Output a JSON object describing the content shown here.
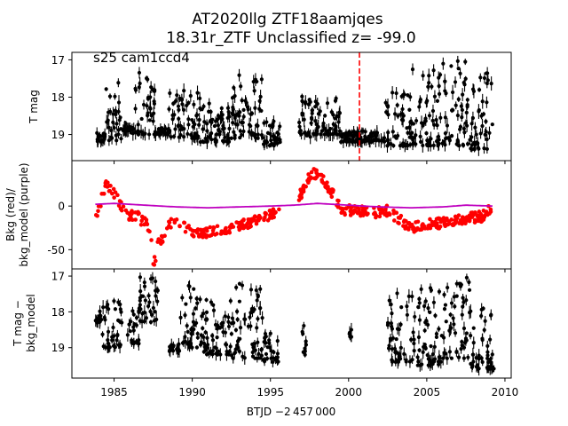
{
  "title_line1": "AT2020llg  ZTF18aamjqes",
  "title_line2": "18.31r_ZTF Unclassified z= -99.0",
  "annotation": "s25 cam1ccd4",
  "xlabel": "BTJD −2 457 000",
  "colors": {
    "points": "#000000",
    "bkg": "#ff0000",
    "model": "#bf00bf",
    "marker_line": "#ff0000"
  },
  "chart_data": [
    {
      "type": "scatter",
      "panel": "top",
      "ylabel": "T mag",
      "xlim": [
        1982.3,
        2010.4
      ],
      "ylim": [
        19.7,
        16.8
      ],
      "yticks": [
        17,
        18,
        19
      ],
      "inverted_y": true,
      "vline_x": 2000.9,
      "series": [
        {
          "marker": "points-with-errorbars",
          "clusters": [
            {
              "x0": 1983.8,
              "x1": 1984.4,
              "bright": 18.9,
              "faint": 19.2
            },
            {
              "x0": 1984.4,
              "x1": 1985.5,
              "bright": 17.6,
              "faint": 19.2
            },
            {
              "x0": 1985.5,
              "x1": 1986.2,
              "bright": 18.7,
              "faint": 18.9
            },
            {
              "x0": 1986.2,
              "x1": 1987.6,
              "bright": 17.2,
              "faint": 19.0
            },
            {
              "x0": 1987.6,
              "x1": 1988.5,
              "bright": 18.8,
              "faint": 19.0
            },
            {
              "x0": 1988.5,
              "x1": 1990.5,
              "bright": 17.8,
              "faint": 19.1
            },
            {
              "x0": 1990.5,
              "x1": 1992.5,
              "bright": 18.1,
              "faint": 19.2
            },
            {
              "x0": 1992.5,
              "x1": 1994.5,
              "bright": 17.4,
              "faint": 19.1
            },
            {
              "x0": 1994.5,
              "x1": 1995.7,
              "bright": 18.6,
              "faint": 19.3
            },
            {
              "x0": 1996.8,
              "x1": 1997.6,
              "bright": 17.9,
              "faint": 19.2
            },
            {
              "x0": 1997.6,
              "x1": 1999.5,
              "bright": 18.0,
              "faint": 19.0
            },
            {
              "x0": 1999.5,
              "x1": 2002.3,
              "bright": 18.9,
              "faint": 19.2
            },
            {
              "x0": 2002.3,
              "x1": 2004.0,
              "bright": 17.8,
              "faint": 19.3
            },
            {
              "x0": 2004.0,
              "x1": 2006.0,
              "bright": 17.2,
              "faint": 19.3
            },
            {
              "x0": 2006.0,
              "x1": 2007.8,
              "bright": 17.0,
              "faint": 19.3
            },
            {
              "x0": 2007.8,
              "x1": 2009.2,
              "bright": 17.3,
              "faint": 19.4
            }
          ]
        }
      ]
    },
    {
      "type": "scatter",
      "panel": "middle",
      "ylabel": "Bkg (red)/\nbkg_model (purple)",
      "xlim": [
        1982.3,
        2010.4
      ],
      "ylim": [
        -72,
        52
      ],
      "yticks": [
        0,
        -50
      ],
      "series": [
        {
          "name": "Bkg",
          "color": "red",
          "knots": [
            [
              1983.8,
              -15
            ],
            [
              1984.5,
              25
            ],
            [
              1985.2,
              10
            ],
            [
              1985.8,
              -10
            ],
            [
              1986.5,
              -12
            ],
            [
              1987.3,
              -25
            ],
            [
              1987.5,
              -70
            ],
            [
              1987.8,
              -45
            ],
            [
              1988.8,
              -15
            ],
            [
              1989.3,
              -20
            ],
            [
              1990.0,
              -32
            ],
            [
              1991.2,
              -30
            ],
            [
              1992.5,
              -25
            ],
            [
              1993.5,
              -20
            ],
            [
              1994.5,
              -15
            ],
            [
              1995.6,
              -5
            ],
            [
              1997.0,
              15
            ],
            [
              1997.6,
              38
            ],
            [
              1998.2,
              35
            ],
            [
              1998.8,
              20
            ],
            [
              1999.3,
              5
            ],
            [
              1999.6,
              -5
            ],
            [
              2000.5,
              -5
            ],
            [
              2001.5,
              -8
            ],
            [
              2002.5,
              -5
            ],
            [
              2003.2,
              -15
            ],
            [
              2004.0,
              -25
            ],
            [
              2005.0,
              -20
            ],
            [
              2006.0,
              -20
            ],
            [
              2007.0,
              -15
            ],
            [
              2008.5,
              -12
            ],
            [
              2009.2,
              0
            ]
          ],
          "spread": 6
        },
        {
          "name": "bkg_model",
          "color": "purple",
          "knots": [
            [
              1983.8,
              2
            ],
            [
              1985.0,
              3
            ],
            [
              1987.0,
              1
            ],
            [
              1989.0,
              -1
            ],
            [
              1991.0,
              -2
            ],
            [
              1993.0,
              -1
            ],
            [
              1995.0,
              0
            ],
            [
              1996.5,
              1
            ],
            [
              1998.0,
              3
            ],
            [
              2000.0,
              1
            ],
            [
              2002.0,
              -1
            ],
            [
              2004.0,
              -2
            ],
            [
              2006.0,
              -1
            ],
            [
              2007.5,
              1
            ],
            [
              2009.2,
              0
            ]
          ]
        }
      ]
    },
    {
      "type": "scatter",
      "panel": "bottom",
      "ylabel": "T mag −\nbkg_model",
      "xlim": [
        1982.3,
        2010.4
      ],
      "ylim": [
        19.85,
        16.8
      ],
      "yticks": [
        17,
        18,
        19
      ],
      "xticks": [
        1985,
        1990,
        1995,
        2000,
        2005,
        2010
      ],
      "inverted_y": true,
      "series": [
        {
          "marker": "points-with-errorbars",
          "clusters": [
            {
              "x0": 1983.8,
              "x1": 1984.2,
              "bright": 17.9,
              "faint": 18.3
            },
            {
              "x0": 1984.2,
              "x1": 1985.5,
              "bright": 17.6,
              "faint": 19.0
            },
            {
              "x0": 1985.8,
              "x1": 1986.6,
              "bright": 17.9,
              "faint": 18.9
            },
            {
              "x0": 1986.6,
              "x1": 1987.8,
              "bright": 17.0,
              "faint": 18.3
            },
            {
              "x0": 1988.5,
              "x1": 1989.2,
              "bright": 18.9,
              "faint": 19.1
            },
            {
              "x0": 1989.2,
              "x1": 1990.4,
              "bright": 17.2,
              "faint": 19.0
            },
            {
              "x0": 1990.5,
              "x1": 1992.5,
              "bright": 17.5,
              "faint": 19.2
            },
            {
              "x0": 1992.5,
              "x1": 1994.5,
              "bright": 17.2,
              "faint": 19.3
            },
            {
              "x0": 1994.5,
              "x1": 1995.5,
              "bright": 18.6,
              "faint": 19.4
            },
            {
              "x0": 1997.0,
              "x1": 1997.3,
              "bright": 18.1,
              "faint": 19.2
            },
            {
              "x0": 2000.0,
              "x1": 2000.2,
              "bright": 18.5,
              "faint": 18.7
            },
            {
              "x0": 2002.5,
              "x1": 2004.0,
              "bright": 17.4,
              "faint": 19.4
            },
            {
              "x0": 2004.0,
              "x1": 2006.0,
              "bright": 17.2,
              "faint": 19.5
            },
            {
              "x0": 2006.0,
              "x1": 2007.8,
              "bright": 17.0,
              "faint": 19.3
            },
            {
              "x0": 2007.8,
              "x1": 2009.3,
              "bright": 17.9,
              "faint": 19.6
            }
          ]
        }
      ]
    }
  ]
}
